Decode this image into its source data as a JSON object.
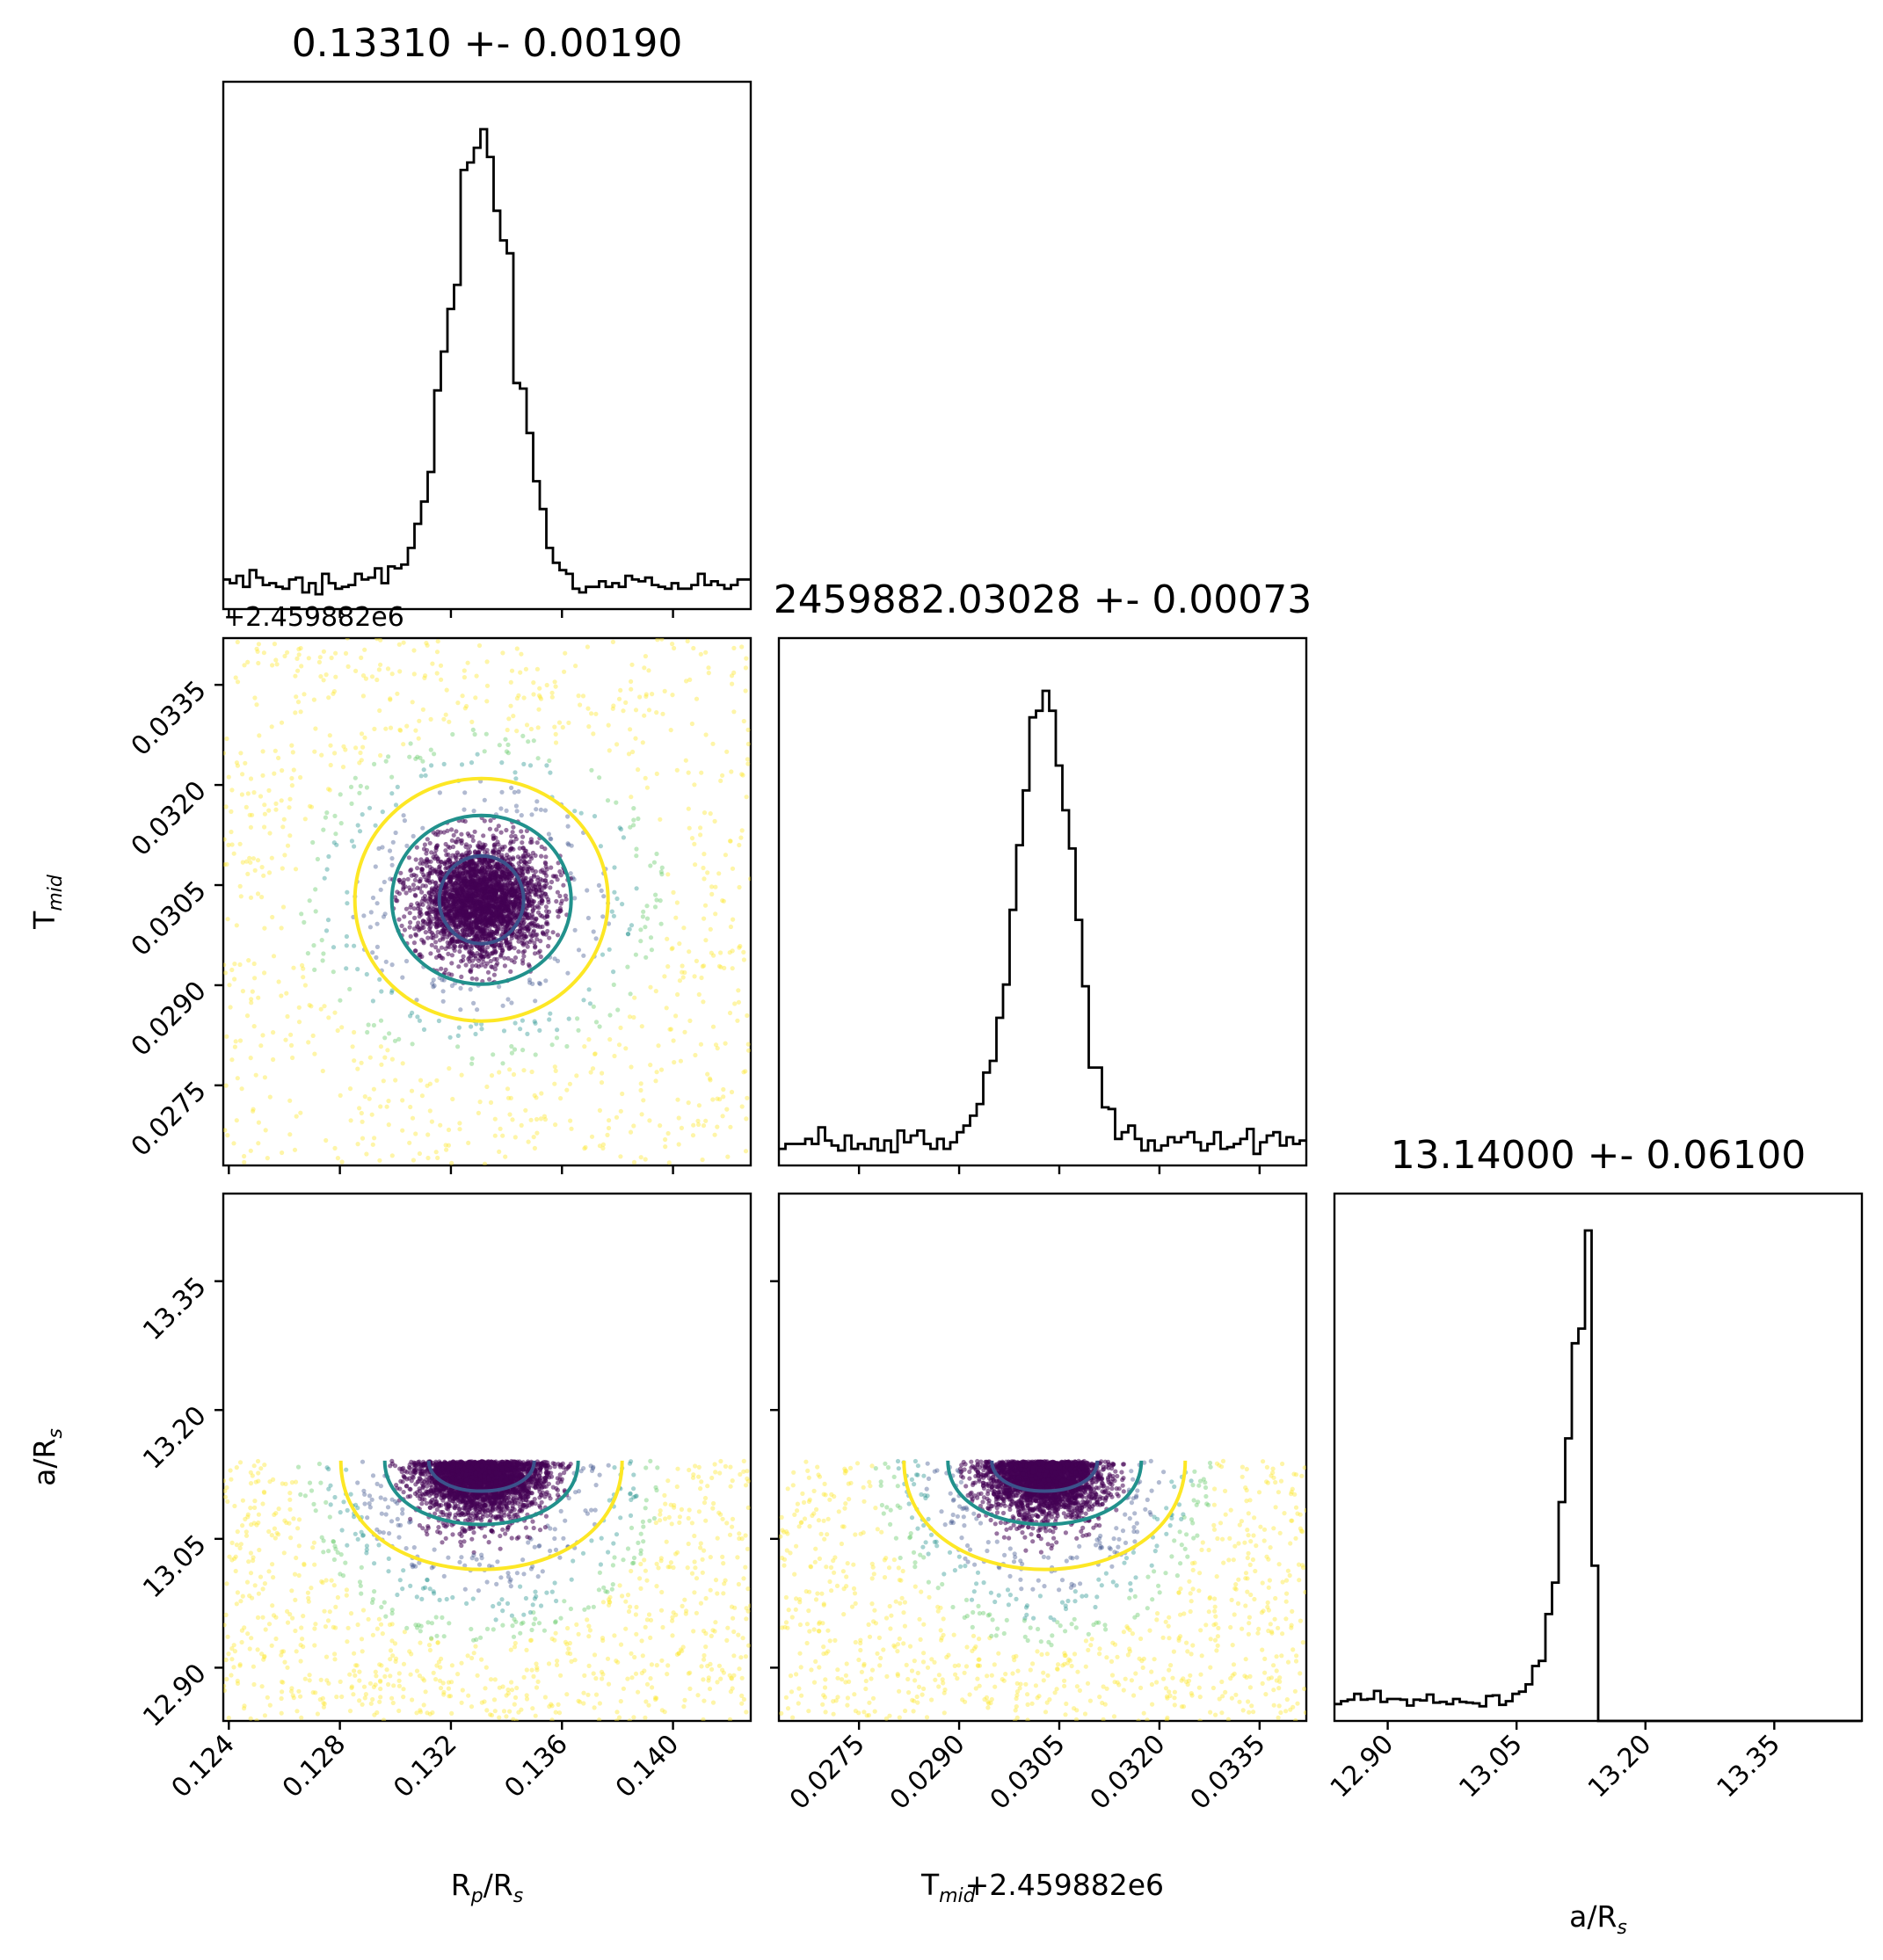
{
  "chart_data": {
    "type": "scatter",
    "chart_kind": "corner plot",
    "parameters": [
      {
        "key": "rp",
        "label": "R_p/R_s",
        "title": "0.13310 +- 0.00190",
        "range": [
          0.1238,
          0.1428
        ],
        "ticks": [
          "0.124",
          "0.128",
          "0.132",
          "0.136",
          "0.140"
        ],
        "median": 0.1331,
        "sigma": 0.0019
      },
      {
        "key": "tmid",
        "label": "T_mid",
        "title": "2459882.03028 +- 0.00073",
        "offset_text": "+2.459882e6",
        "x_offset_label": "+2.459882e6",
        "range": [
          0.0263,
          0.0342
        ],
        "ticks": [
          "0.0275",
          "0.0290",
          "0.0305",
          "0.0320",
          "0.0335"
        ],
        "median": 0.03028,
        "sigma": 0.00073
      },
      {
        "key": "ars",
        "label": "a/R_s",
        "title": "13.14000 +- 0.06100",
        "range": [
          12.838,
          13.452
        ],
        "ticks": [
          "12.90",
          "13.05",
          "13.20",
          "13.35"
        ],
        "median": 13.14,
        "sigma": 0.061,
        "upper_bound": 13.141
      }
    ],
    "hist_peak_fraction": [
      0.91,
      0.9,
      0.93
    ],
    "contour_levels": [
      "0.5 sigma",
      "1 sigma",
      "2 sigma"
    ],
    "contour_colors": [
      "#3b528b",
      "#21918c",
      "#fde725"
    ],
    "colormap": "viridis",
    "point_color_scale": [
      "#440154",
      "#3b528b",
      "#21918c",
      "#5ec962",
      "#fde725"
    ]
  },
  "labels": {
    "title_rp": "0.13310 +- 0.00190",
    "title_tmid": "2459882.03028 +- 0.00073",
    "title_ars": "13.14000 +- 0.06100",
    "xlabel_rp_main": "R",
    "xlabel_rp_sub": "p",
    "xlabel_rp_rest": "/R",
    "xlabel_rp_sub2": "s",
    "xlabel_tmid_main": "T",
    "xlabel_tmid_sub": "mid",
    "xlabel_tmid_offset": "+2.459882e6",
    "xlabel_ars_main": "a/R",
    "xlabel_ars_sub": "s",
    "ylabel_tmid_main": "T",
    "ylabel_tmid_sub": "mid",
    "ylabel_ars_main": "a/R",
    "ylabel_ars_sub": "s",
    "offset_text": "+2.459882e6"
  }
}
